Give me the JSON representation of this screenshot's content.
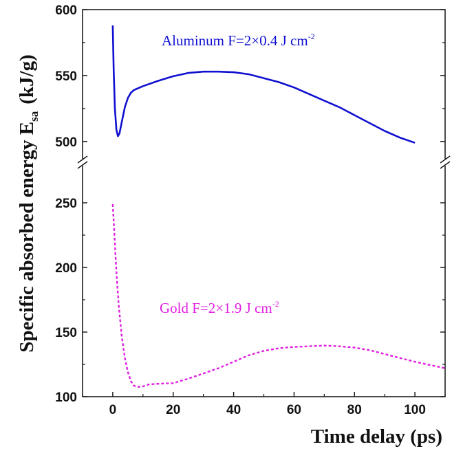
{
  "chart_data": {
    "type": "line",
    "xlabel": "Time delay (ps)",
    "ylabel": {
      "main": "Specific absorbed energy  E",
      "sub": "sa",
      "unit": "(kJ/g)"
    },
    "xlim": [
      -10,
      110
    ],
    "x_ticks": [
      "0",
      "20",
      "40",
      "60",
      "80",
      "100"
    ],
    "y_axis_broken": true,
    "upper_ylim": [
      490,
      600
    ],
    "lower_ylim": [
      100,
      275
    ],
    "upper_ticks": [
      "500",
      "550",
      "600"
    ],
    "lower_ticks": [
      "100",
      "150",
      "200",
      "250"
    ],
    "grid": false,
    "series": [
      {
        "label": {
          "pre": "Aluminum  F=2×0.4 J cm",
          "sup": "-2"
        },
        "color": "#1010d0",
        "style": "solid",
        "panel": "upper",
        "x": [
          0,
          0.3,
          0.7,
          1.2,
          1.7,
          2.2,
          3,
          4,
          5,
          6,
          7,
          8,
          10,
          15,
          20,
          25,
          30,
          35,
          40,
          45,
          50,
          55,
          60,
          65,
          70,
          75,
          80,
          85,
          90,
          95,
          100
        ],
        "y": [
          588,
          555,
          525,
          509,
          504,
          506,
          515,
          526,
          533,
          537,
          539,
          540,
          542,
          546,
          549.5,
          552,
          553,
          553,
          552.5,
          551,
          548,
          545,
          541,
          536,
          531,
          526,
          520,
          514,
          508,
          503,
          499
        ]
      },
      {
        "label": {
          "pre": "Gold  F=2×1.9 J cm",
          "sup": "-2"
        },
        "color": "#e020e0",
        "style": "dashed",
        "panel": "lower",
        "x": [
          0,
          0.5,
          1,
          1.5,
          2,
          3,
          4,
          5,
          6,
          7,
          8,
          10,
          12,
          15,
          20,
          25,
          30,
          35,
          40,
          45,
          50,
          55,
          60,
          65,
          70,
          75,
          80,
          85,
          90,
          95,
          100,
          105,
          110
        ],
        "y": [
          249,
          228,
          205,
          186,
          170,
          146,
          130,
          119,
          112,
          108.5,
          107.5,
          108,
          109.5,
          110,
          110.5,
          114,
          118,
          122,
          127,
          132,
          135.5,
          137.5,
          138.5,
          139,
          139.5,
          139,
          138,
          136,
          133,
          130,
          127,
          124.5,
          122
        ]
      }
    ]
  }
}
